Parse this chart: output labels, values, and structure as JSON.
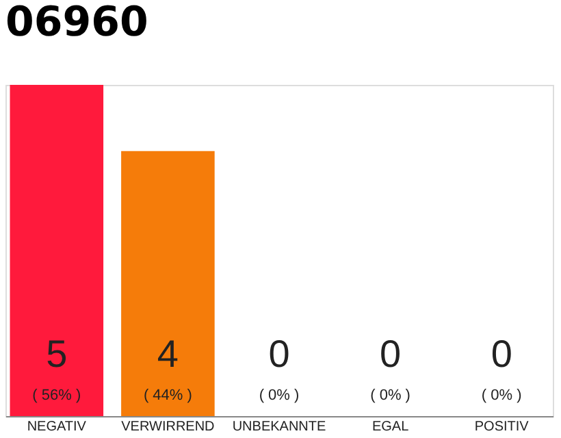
{
  "chart_data": {
    "type": "bar",
    "title": "06960",
    "categories": [
      "NEGATIV",
      "VERWIRREND",
      "UNBEKANNTE",
      "EGAL",
      "POSITIV"
    ],
    "values": [
      5,
      4,
      0,
      0,
      0
    ],
    "colors": [
      "#ff1a3c",
      "#f57c0a",
      "#f57c0a",
      "#f57c0a",
      "#f57c0a"
    ],
    "data_labels": true,
    "annotations": [
      "( 56% )",
      "( 44% )",
      "( 0% )",
      "( 0% )",
      "( 0% )"
    ],
    "tick_labels": "x"
  }
}
